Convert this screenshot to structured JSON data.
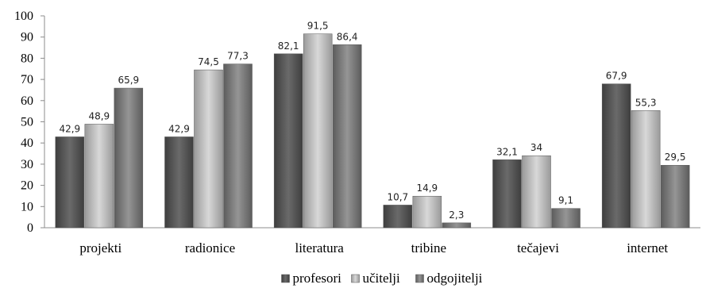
{
  "chart_data": {
    "type": "bar",
    "title": "",
    "xlabel": "",
    "ylabel": "",
    "ylim": [
      0,
      100
    ],
    "yticks": [
      0,
      10,
      20,
      30,
      40,
      50,
      60,
      70,
      80,
      90,
      100
    ],
    "grid": false,
    "legend_position": "bottom",
    "categories": [
      "projekti",
      "radionice",
      "literatura",
      "tribine",
      "tečajevi",
      "internet"
    ],
    "series": [
      {
        "name": "profesori",
        "color": "#5e5e5e",
        "values": [
          42.9,
          42.9,
          82.1,
          10.7,
          32.1,
          67.9
        ],
        "labels": [
          "42,9",
          "42,9",
          "82,1",
          "10,7",
          "32,1",
          "67,9"
        ]
      },
      {
        "name": "učitelji",
        "color": "#b4b4b4",
        "values": [
          48.9,
          74.5,
          91.5,
          14.9,
          34,
          55.3
        ],
        "labels": [
          "48,9",
          "74,5",
          "91,5",
          "14,9",
          "34",
          "55,3"
        ]
      },
      {
        "name": "odgojitelji",
        "color": "#828282",
        "values": [
          65.9,
          77.3,
          86.4,
          2.3,
          9.1,
          29.5
        ],
        "labels": [
          "65,9",
          "77,3",
          "86,4",
          "2,3",
          "9,1",
          "29,5"
        ]
      }
    ]
  }
}
